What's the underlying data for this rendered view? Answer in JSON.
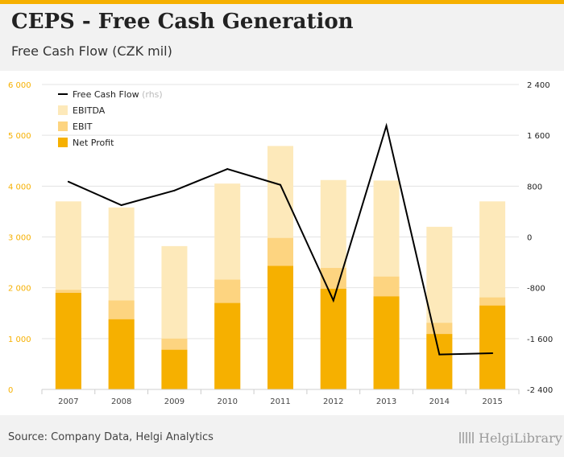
{
  "header": {
    "title": "CEPS - Free Cash Generation",
    "subtitle": "Free Cash Flow (CZK mil)"
  },
  "footer": {
    "source": "Source: Company Data, Helgi Analytics",
    "logo": "HelgiLibrary"
  },
  "colors": {
    "ebitda": "#fde9ba",
    "ebit": "#fdd480",
    "net_profit": "#f6b000",
    "fcf": "#000000",
    "left_axis_text": "#f6b000",
    "right_axis_text": "#222222"
  },
  "chart_data": {
    "type": "bar",
    "categories": [
      "2007",
      "2008",
      "2009",
      "2010",
      "2011",
      "2012",
      "2013",
      "2014",
      "2015"
    ],
    "series": [
      {
        "name": "EBITDA",
        "axis": "left",
        "values": [
          3700,
          3580,
          2820,
          4050,
          4790,
          4120,
          4110,
          3200,
          3700
        ]
      },
      {
        "name": "EBIT",
        "axis": "left",
        "values": [
          1960,
          1750,
          1000,
          2160,
          2980,
          2390,
          2220,
          1310,
          1810
        ]
      },
      {
        "name": "Net Profit",
        "axis": "left",
        "values": [
          1900,
          1380,
          780,
          1700,
          2430,
          1980,
          1830,
          1090,
          1650
        ]
      },
      {
        "name": "Free Cash Flow",
        "axis": "right",
        "type": "line",
        "values": [
          870,
          500,
          730,
          1070,
          820,
          -1000,
          1750,
          -1850,
          -1830
        ]
      }
    ],
    "legend": {
      "entries": [
        "Free Cash Flow",
        "EBITDA",
        "EBIT",
        "Net Profit"
      ],
      "rhs_suffix": "(rhs)",
      "placement": "top-left"
    },
    "y_left": {
      "min": 0,
      "max": 6000,
      "ticks": [
        0,
        1000,
        2000,
        3000,
        4000,
        5000,
        6000
      ],
      "tick_labels": [
        "0",
        "1 000",
        "2 000",
        "3 000",
        "4 000",
        "5 000",
        "6 000"
      ]
    },
    "y_right": {
      "min": -2400,
      "max": 2400,
      "ticks": [
        -2400,
        -1600,
        -800,
        0,
        800,
        1600,
        2400
      ],
      "tick_labels": [
        "-2 400",
        "-1 600",
        "-800",
        "0",
        "800",
        "1 600",
        "2 400"
      ]
    },
    "grid": true
  }
}
